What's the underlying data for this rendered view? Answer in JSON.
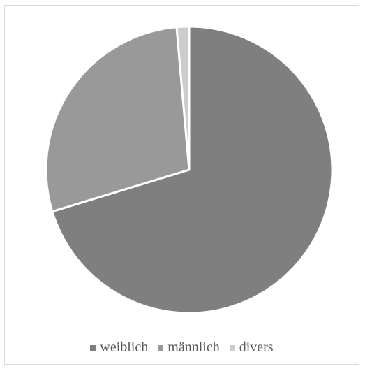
{
  "chart_data": {
    "type": "pie",
    "categories": [
      "weiblich",
      "männlich",
      "divers"
    ],
    "values": [
      70.3,
      28.3,
      1.4
    ],
    "colors": [
      "#7f7f7f",
      "#999999",
      "#cccccc"
    ],
    "legend_position": "bottom",
    "title": ""
  }
}
